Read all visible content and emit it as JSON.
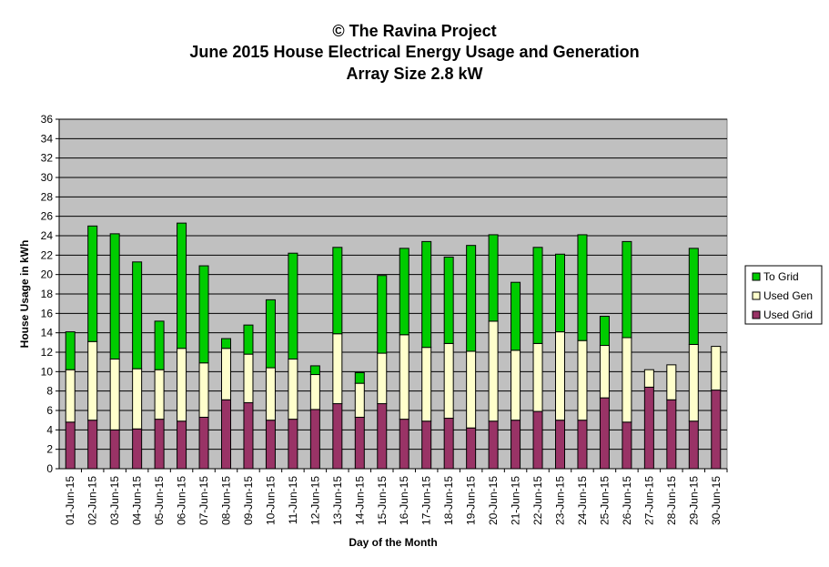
{
  "chart_data": {
    "type": "bar",
    "stacked": true,
    "title": [
      "© The Ravina Project",
      "June 2015 House Electrical Energy Usage and Generation",
      "Array Size 2.8 kW"
    ],
    "xlabel": "Day of the Month",
    "ylabel": "House Usage in kWh",
    "ylim": [
      0,
      36
    ],
    "ytick_step": 2,
    "grid": true,
    "legend_position": "right",
    "categories": [
      "01-Jun-15",
      "02-Jun-15",
      "03-Jun-15",
      "04-Jun-15",
      "05-Jun-15",
      "06-Jun-15",
      "07-Jun-15",
      "08-Jun-15",
      "09-Jun-15",
      "10-Jun-15",
      "11-Jun-15",
      "12-Jun-15",
      "13-Jun-15",
      "14-Jun-15",
      "15-Jun-15",
      "16-Jun-15",
      "17-Jun-15",
      "18-Jun-15",
      "19-Jun-15",
      "20-Jun-15",
      "21-Jun-15",
      "22-Jun-15",
      "23-Jun-15",
      "24-Jun-15",
      "25-Jun-15",
      "26-Jun-15",
      "27-Jun-15",
      "28-Jun-15",
      "29-Jun-15",
      "30-Jun-15"
    ],
    "series": [
      {
        "name": "Used Grid",
        "color": "#993366",
        "values": [
          4.8,
          5.0,
          4.0,
          4.1,
          5.1,
          4.9,
          5.3,
          7.1,
          6.8,
          5.0,
          5.1,
          6.1,
          6.7,
          5.3,
          6.7,
          5.1,
          4.9,
          5.2,
          4.2,
          4.9,
          5.0,
          5.9,
          5.0,
          5.0,
          7.3,
          4.8,
          8.4,
          7.1,
          4.9,
          8.1
        ]
      },
      {
        "name": "Used Gen",
        "color": "#FFFFCC",
        "values": [
          5.4,
          8.1,
          7.3,
          6.2,
          5.1,
          7.5,
          5.6,
          5.3,
          5.0,
          5.4,
          6.2,
          3.6,
          7.2,
          3.5,
          5.2,
          8.7,
          7.6,
          7.7,
          7.9,
          10.3,
          7.2,
          7.0,
          9.1,
          8.2,
          5.4,
          8.7,
          1.8,
          3.6,
          7.9,
          4.5
        ]
      },
      {
        "name": "To Grid",
        "color": "#00CC00",
        "values": [
          3.9,
          11.9,
          12.9,
          11.0,
          5.0,
          12.9,
          10.0,
          1.0,
          3.0,
          7.0,
          10.9,
          0.9,
          8.9,
          1.1,
          8.0,
          8.9,
          10.9,
          8.9,
          10.9,
          8.9,
          7.0,
          9.9,
          8.0,
          10.9,
          3.0,
          9.9,
          0,
          0,
          9.9,
          0
        ]
      }
    ]
  }
}
